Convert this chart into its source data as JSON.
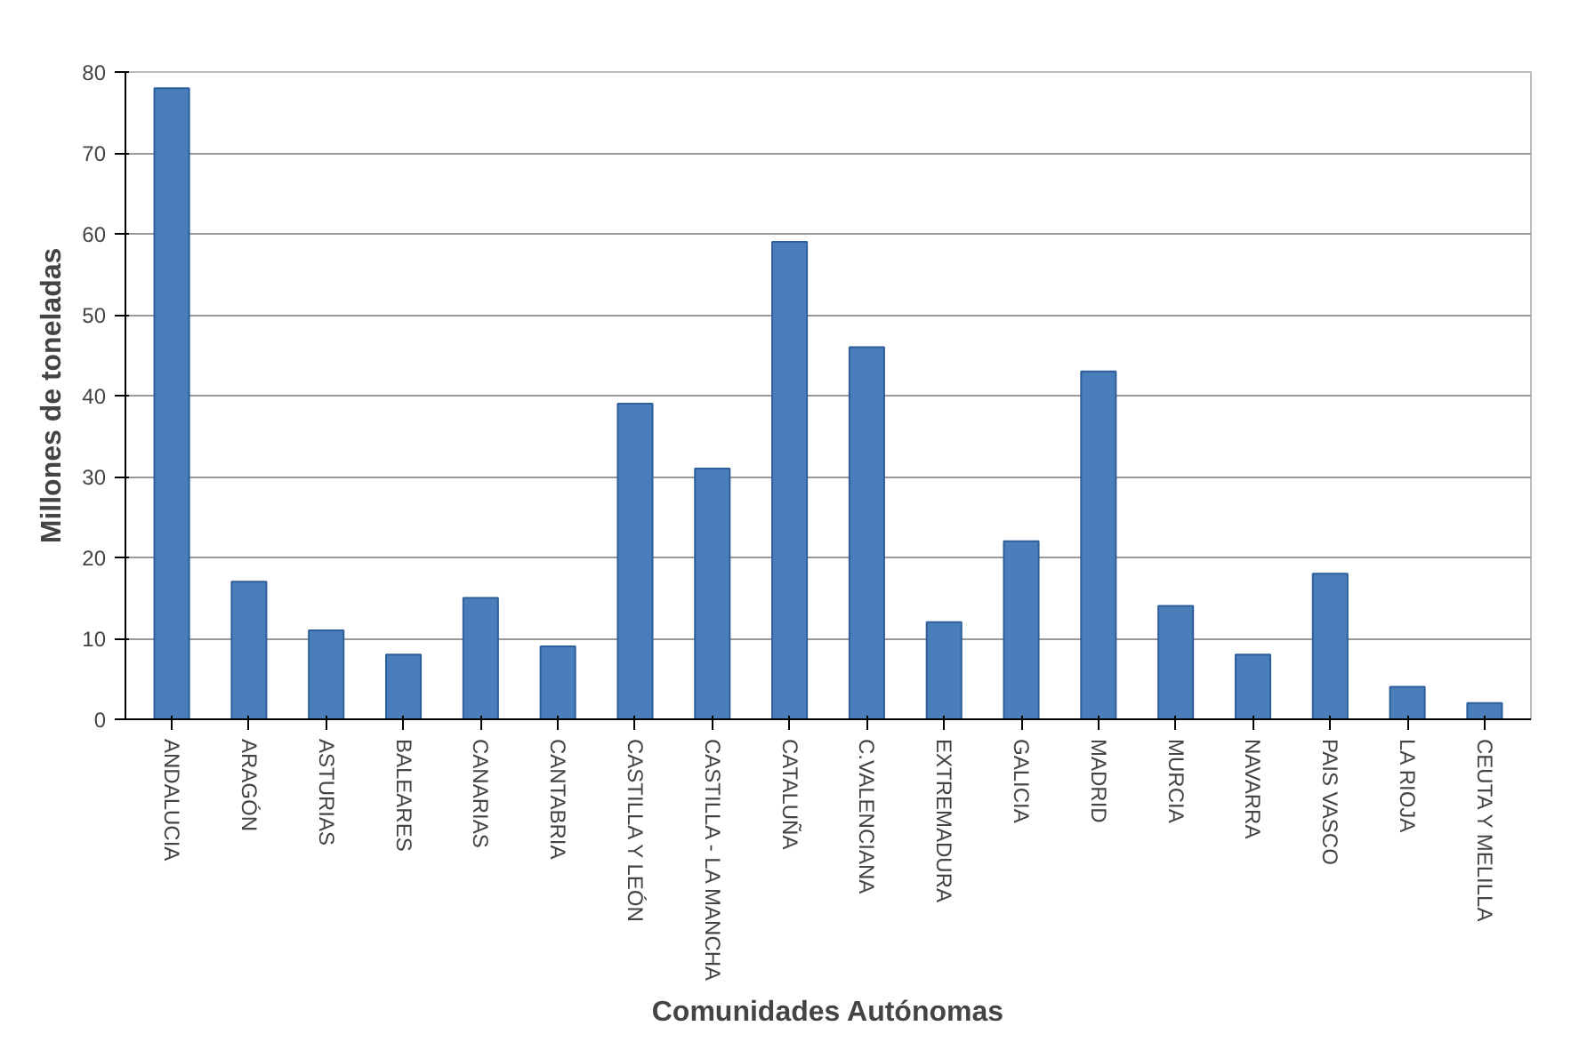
{
  "chart_data": {
    "type": "bar",
    "xlabel": "Comunidades Autónomas",
    "ylabel": "Millones de toneladas",
    "categories": [
      "ANDALUCIA",
      "ARAGÓN",
      "ASTURIAS",
      "BALEARES",
      "CANARIAS",
      "CANTABRIA",
      "CASTILLA Y LEÓN",
      "CASTILLA - LA MANCHA",
      "CATALUÑA",
      "C.VALENCIANA",
      "EXTREMADURA",
      "GALICIA",
      "MADRID",
      "MURCIA",
      "NAVARRA",
      "PAIS VASCO",
      "LA RIOJA",
      "CEUTA Y MELILLA"
    ],
    "values": [
      78,
      17,
      11,
      8,
      15,
      9,
      39,
      31,
      59,
      46,
      12,
      22,
      43,
      14,
      8,
      18,
      4,
      2
    ],
    "color": "#4a7ebb",
    "ylim": [
      0,
      80
    ],
    "yticks": [
      0,
      10,
      20,
      30,
      40,
      50,
      60,
      70,
      80
    ],
    "grid": "y"
  }
}
